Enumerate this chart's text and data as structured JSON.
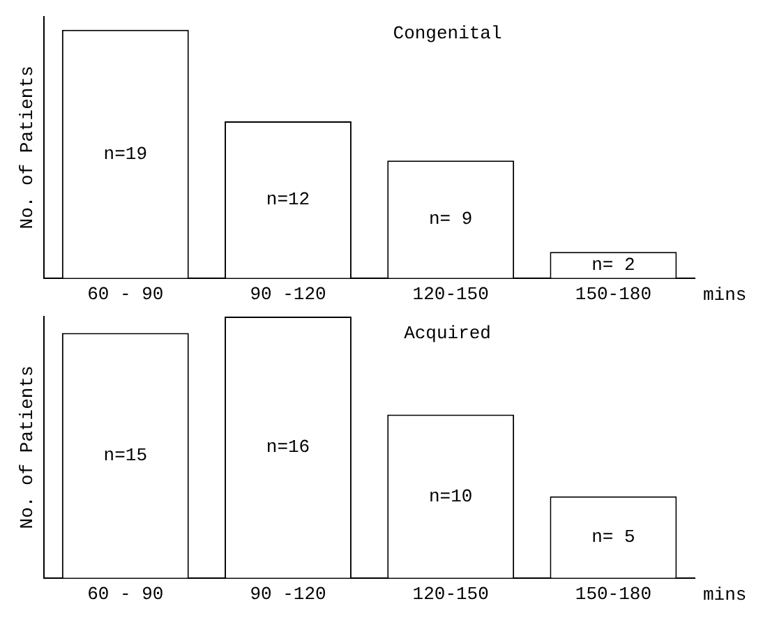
{
  "chart_data": [
    {
      "type": "bar",
      "title": "Congenital",
      "ylabel": "No. of Patients",
      "xlabel": "mins",
      "categories": [
        "60 - 90",
        "90 -120",
        "120-150",
        "150-180"
      ],
      "values": [
        19,
        12,
        9,
        2
      ],
      "value_labels": [
        "n=19",
        "n=12",
        "n= 9",
        "n= 2"
      ],
      "color": "#ffffff",
      "tick_labels": "x",
      "grid": false,
      "legend": false
    },
    {
      "type": "bar",
      "title": "Acquired",
      "ylabel": "No. of Patients",
      "xlabel": "mins",
      "categories": [
        "60 - 90",
        "90 -120",
        "120-150",
        "150-180"
      ],
      "values": [
        15,
        16,
        10,
        5
      ],
      "value_labels": [
        "n=15",
        "n=16",
        "n=10",
        "n= 5"
      ],
      "color": "#ffffff",
      "tick_labels": "x",
      "grid": false,
      "legend": false
    }
  ]
}
